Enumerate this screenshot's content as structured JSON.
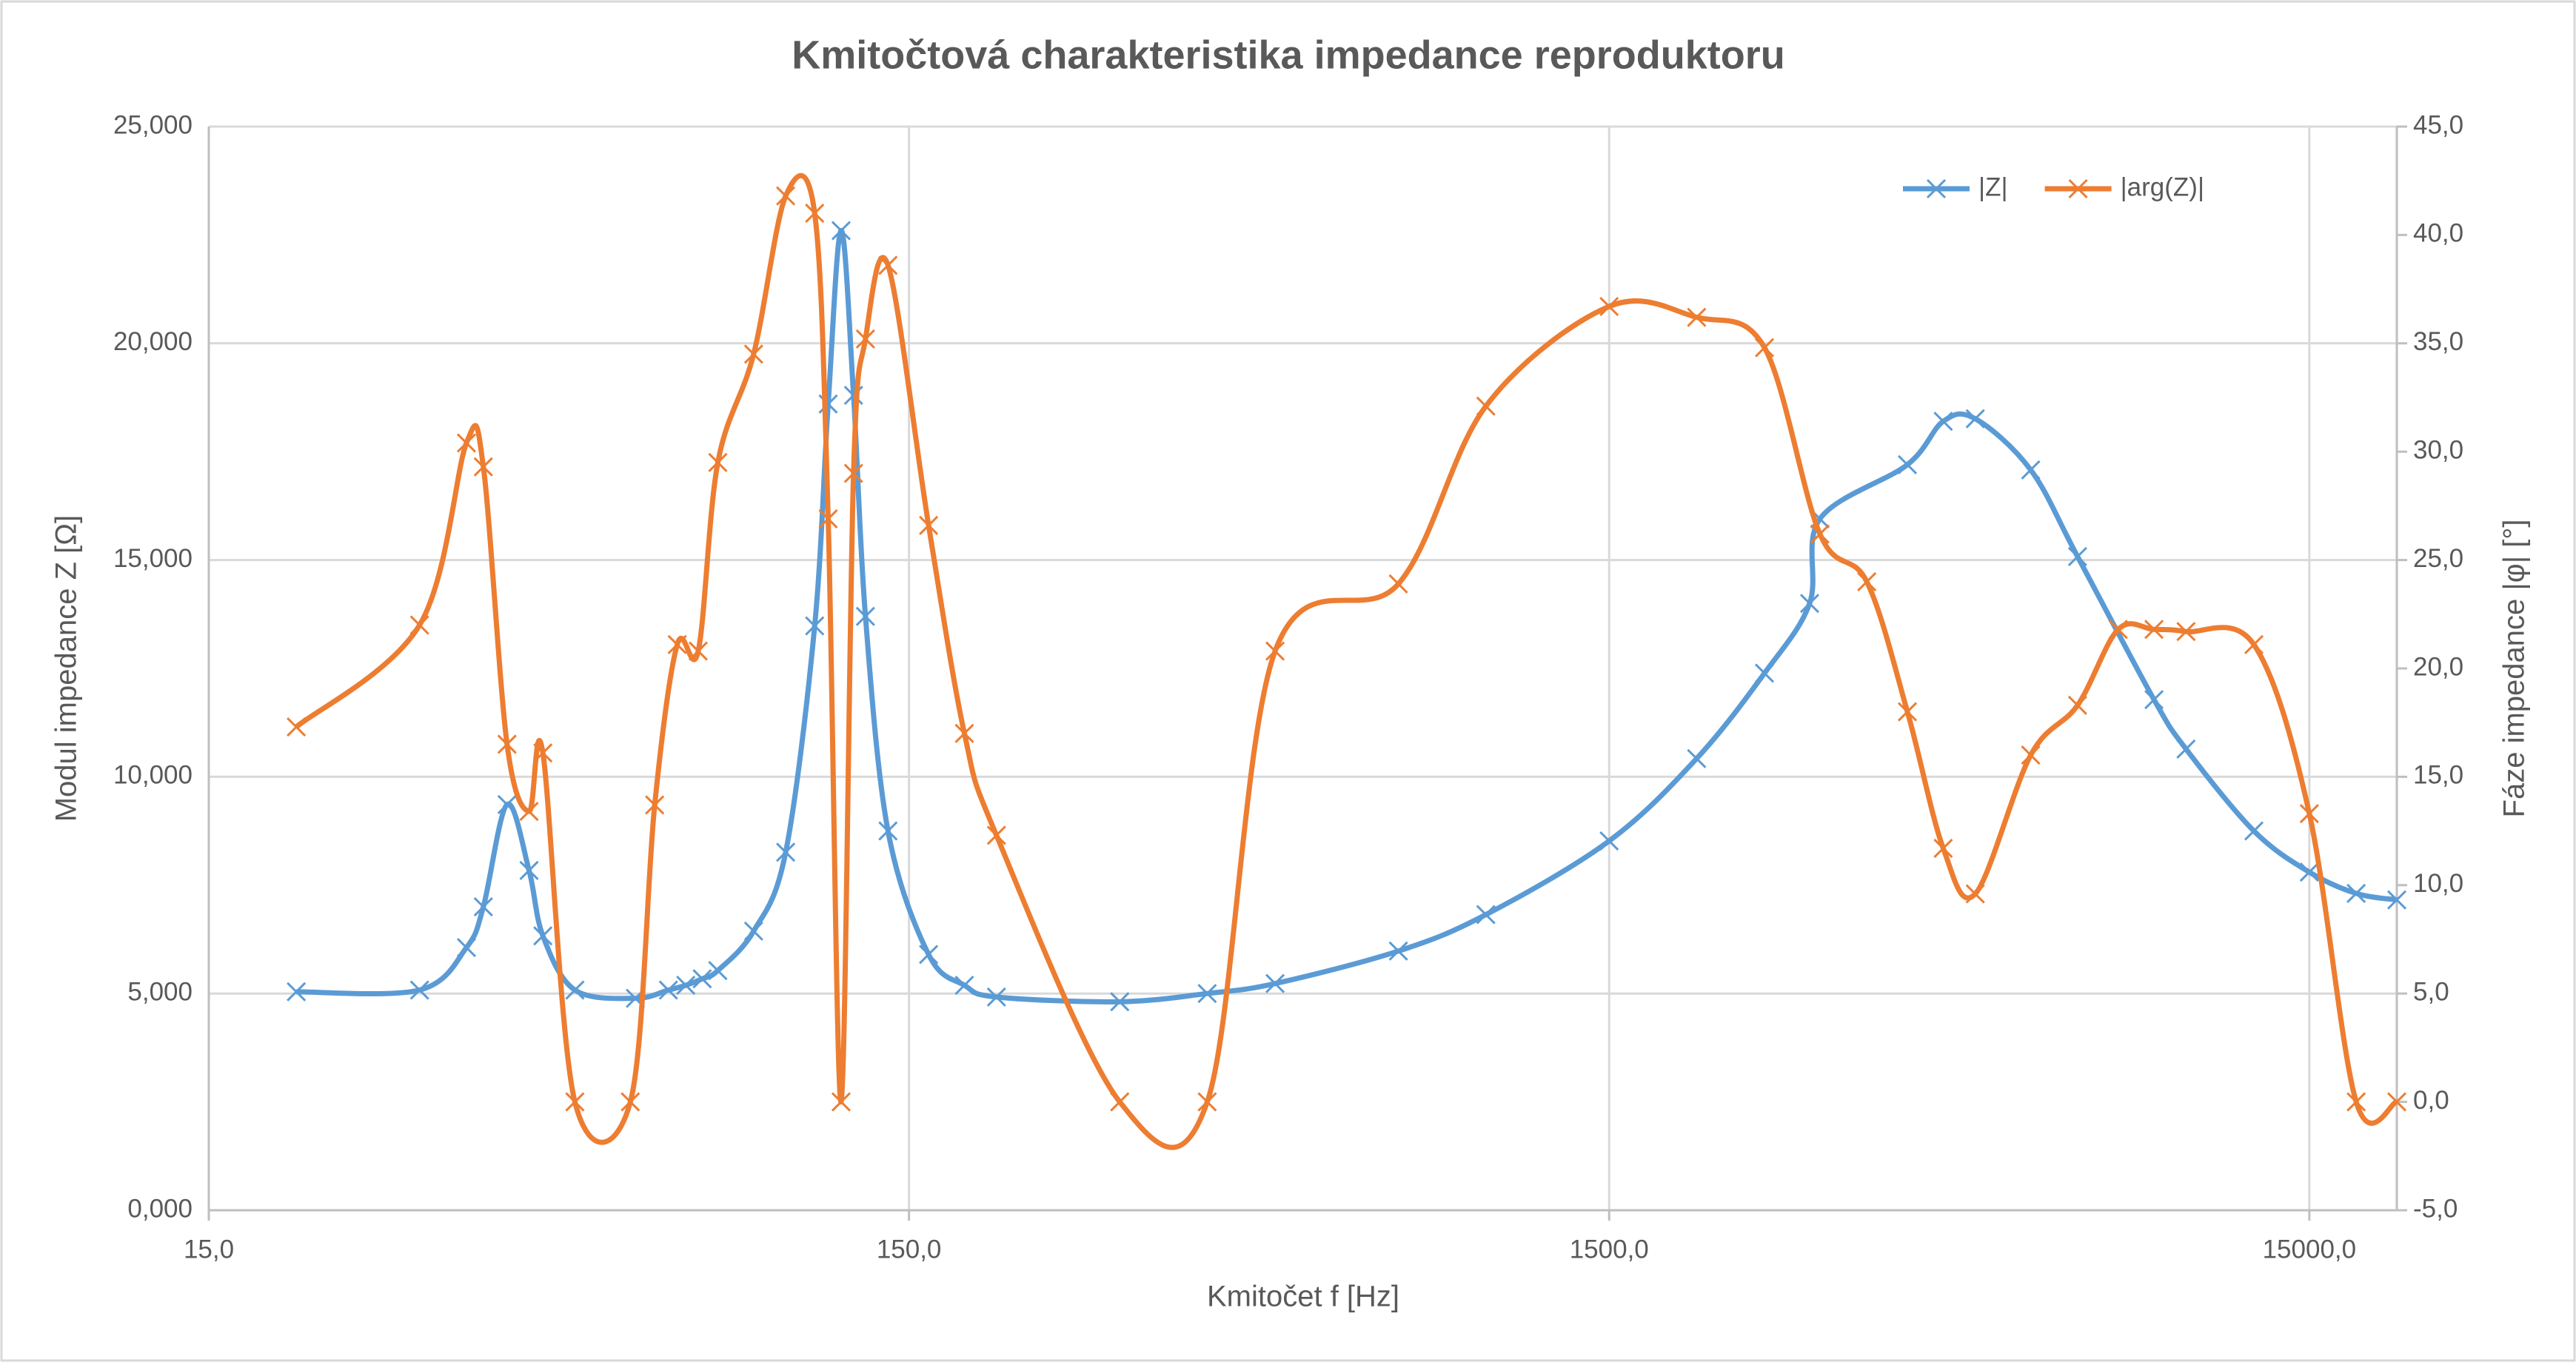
{
  "chart_data": {
    "type": "line",
    "title": "Kmitočtová charakteristika impedance reproduktoru",
    "x_label": "Kmitočet f [Hz]",
    "y_label": "Modul impedance Z [Ω]",
    "y2_label": "Fáze impedance |φ| [°]",
    "x_scale": "log",
    "xlim": [
      15,
      20000
    ],
    "xticks": [
      {
        "value": 15,
        "label": "15,0"
      },
      {
        "value": 150,
        "label": "150,0"
      },
      {
        "value": 1500,
        "label": "1500,0"
      },
      {
        "value": 15000,
        "label": "15000,0"
      }
    ],
    "ylim": [
      0,
      25
    ],
    "yticks": [
      {
        "value": 0,
        "label": "0,000"
      },
      {
        "value": 5,
        "label": "5,000"
      },
      {
        "value": 10,
        "label": "10,000"
      },
      {
        "value": 15,
        "label": "15,000"
      },
      {
        "value": 20,
        "label": "20,000"
      },
      {
        "value": 25,
        "label": "25,000"
      }
    ],
    "y2lim": [
      -5,
      45
    ],
    "y2ticks": [
      {
        "value": -5,
        "label": "-5,0"
      },
      {
        "value": 0,
        "label": "0,0"
      },
      {
        "value": 5,
        "label": "5,0"
      },
      {
        "value": 10,
        "label": "10,0"
      },
      {
        "value": 15,
        "label": "15,0"
      },
      {
        "value": 20,
        "label": "20,0"
      },
      {
        "value": 25,
        "label": "25,0"
      },
      {
        "value": 30,
        "label": "30,0"
      },
      {
        "value": 35,
        "label": "35,0"
      },
      {
        "value": 40,
        "label": "40,0"
      },
      {
        "value": 45,
        "label": "45,0"
      }
    ],
    "grid": true,
    "legend": "top-right",
    "series": [
      {
        "name": "|Z|",
        "color": "#5b9bd5",
        "x": [
          20,
          30,
          35,
          37,
          40,
          43,
          45,
          50,
          61,
          68,
          72,
          76,
          80,
          90,
          100,
          110,
          115,
          120,
          125,
          130,
          140,
          160,
          180,
          200,
          300,
          400,
          500,
          750,
          1000,
          1500,
          2000,
          2500,
          2900,
          3000,
          4000,
          4500,
          5000,
          6000,
          7000,
          9000,
          10000,
          12500,
          15000,
          17500,
          20000
        ],
        "values": [
          5.04,
          5.08,
          6.06,
          7.0,
          9.36,
          7.84,
          6.33,
          5.08,
          4.89,
          5.08,
          5.19,
          5.34,
          5.53,
          6.44,
          8.26,
          13.48,
          18.6,
          22.6,
          18.8,
          13.7,
          8.75,
          5.9,
          5.19,
          4.92,
          4.81,
          5.0,
          5.23,
          5.98,
          6.82,
          8.52,
          10.42,
          12.39,
          14.0,
          15.95,
          17.2,
          18.2,
          18.26,
          17.08,
          15.08,
          11.78,
          10.64,
          8.75,
          7.8,
          7.31,
          7.16
        ]
      },
      {
        "name": "|arg(Z)|",
        "color": "#ed7d31",
        "axis": "y2",
        "x": [
          20,
          30,
          35,
          37,
          40,
          43,
          45,
          50,
          60,
          65,
          70,
          75,
          80,
          90,
          100,
          110,
          115,
          120,
          125,
          130,
          140,
          160,
          180,
          200,
          300,
          400,
          500,
          750,
          1000,
          1500,
          2000,
          2500,
          3000,
          3500,
          4000,
          4500,
          5000,
          6000,
          7000,
          8000,
          9000,
          10000,
          12500,
          15000,
          17500,
          20000
        ],
        "values": [
          17.3,
          22.0,
          30.4,
          29.3,
          16.5,
          13.4,
          16.1,
          0,
          0,
          13.7,
          21.1,
          20.8,
          29.5,
          34.5,
          41.8,
          41.0,
          26.9,
          0,
          29.0,
          35.2,
          38.6,
          26.6,
          17.0,
          12.3,
          0,
          0,
          20.8,
          23.9,
          32.1,
          36.7,
          36.2,
          34.8,
          26.2,
          24.0,
          18.0,
          11.7,
          9.6,
          16.0,
          18.3,
          21.8,
          21.8,
          21.7,
          21.1,
          13.3,
          0,
          0
        ]
      }
    ]
  }
}
